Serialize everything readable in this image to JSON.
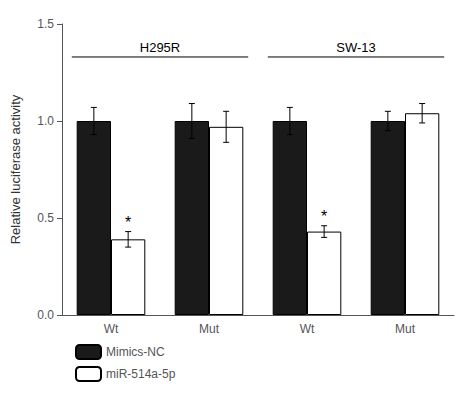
{
  "chart_data": {
    "type": "bar",
    "categories": [
      "Wt",
      "Mut",
      "Wt",
      "Mut"
    ],
    "series": [
      {
        "name": "Mimics-NC",
        "color": "#1a1a1a",
        "values": [
          1.0,
          1.0,
          1.0,
          1.0
        ],
        "errors": [
          0.07,
          0.09,
          0.07,
          0.05
        ]
      },
      {
        "name": "miR-514a-5p",
        "color": "#ffffff",
        "values": [
          0.39,
          0.97,
          0.43,
          1.04
        ],
        "errors": [
          0.04,
          0.08,
          0.03,
          0.05
        ]
      }
    ],
    "ylabel": "Relative luciferase activity",
    "ylim": [
      0,
      1.5
    ],
    "yticks": [
      {
        "value": 0.0,
        "label": "0.0"
      },
      0.5,
      {
        "value": 1.0,
        "label": "1.0"
      },
      1.5
    ],
    "grid": false,
    "legend": "bottom",
    "annotations": [
      {
        "text": "*",
        "series": "miR-514a-5p",
        "index": 0
      },
      {
        "text": "*",
        "series": "miR-514a-5p",
        "index": 2
      }
    ],
    "group_labels": [
      {
        "text": "H295R",
        "categories": [
          0,
          1
        ],
        "y": 1.33
      },
      {
        "text": "SW-13",
        "categories": [
          2,
          3
        ],
        "y": 1.33
      }
    ]
  }
}
